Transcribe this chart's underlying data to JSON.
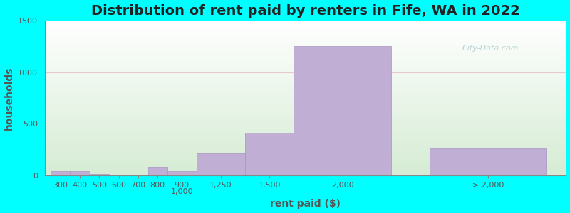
{
  "title": "Distribution of rent paid by renters in Fife, WA in 2022",
  "xlabel": "rent paid ($)",
  "ylabel": "households",
  "background_color": "#00FFFF",
  "plot_bg_top": "#d6ecd4",
  "plot_bg_bottom": "#ffffff",
  "bar_color": "#c0aed4",
  "bar_edgecolor": "#a892c4",
  "ylim": [
    0,
    1500
  ],
  "yticks": [
    0,
    500,
    1000,
    1500
  ],
  "title_fontsize": 14,
  "axis_label_fontsize": 10,
  "tick_fontsize": 8,
  "bar_left_edges": [
    250,
    350,
    450,
    550,
    650,
    750,
    850,
    1000,
    1250,
    1500,
    2200
  ],
  "bar_widths": [
    100,
    100,
    100,
    100,
    100,
    100,
    150,
    250,
    250,
    500,
    600
  ],
  "values": [
    40,
    40,
    15,
    5,
    5,
    80,
    40,
    215,
    410,
    1250,
    265
  ],
  "tick_positions": [
    300,
    400,
    500,
    600,
    700,
    800,
    925,
    1125,
    1375,
    1750,
    2500
  ],
  "tick_labels": [
    "300",
    "400",
    "500",
    "600",
    "700",
    "800",
    "900\n1,000",
    "1,250",
    "1,500",
    "2,000",
    "> 2,000"
  ],
  "xlim": [
    220,
    2900
  ],
  "watermark": "City-Data.com"
}
